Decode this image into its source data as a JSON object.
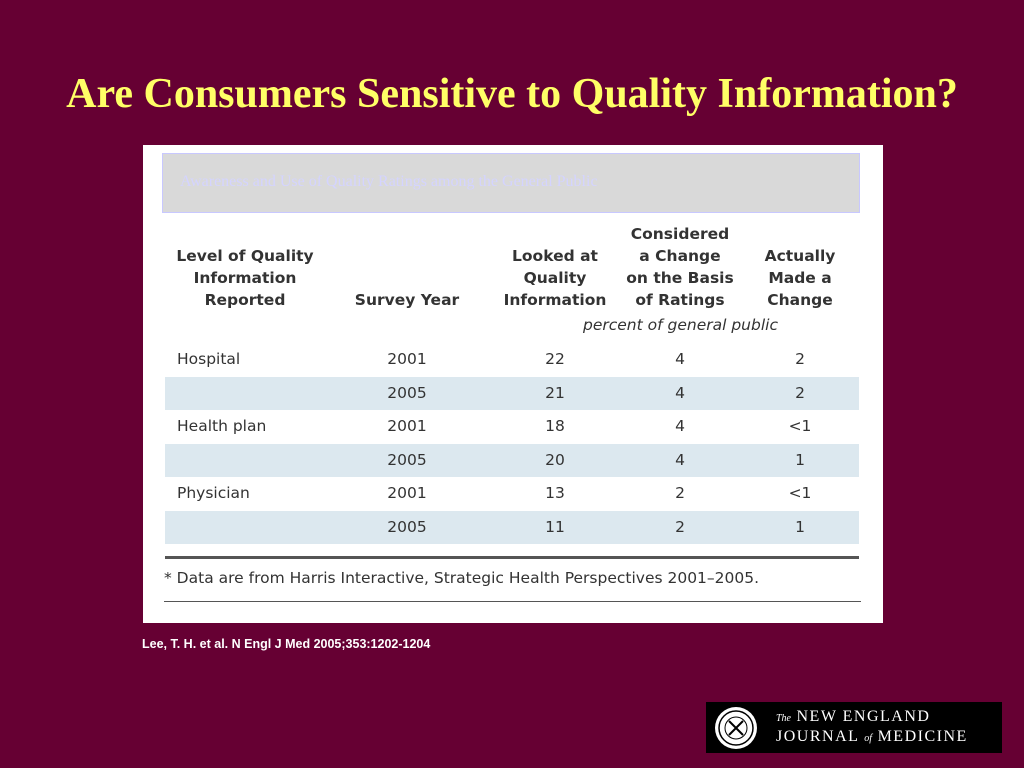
{
  "slide": {
    "title": "Are Consumers Sensitive to Quality Information?",
    "citation": "Lee, T. H. et al. N Engl J Med 2005;353:1202-1204"
  },
  "figure": {
    "caption": "Awareness and Use of Quality Ratings among the General Public",
    "columns": {
      "level": "Level of Quality\nInformation\nReported",
      "year": "Survey Year",
      "looked": "Looked at\nQuality\nInformation",
      "considered": "Considered\na Change\non the Basis\nof Ratings",
      "changed": "Actually\nMade a\nChange"
    },
    "unit_note": "percent of general public",
    "rows": [
      {
        "level": "Hospital",
        "year": "2001",
        "looked": "22",
        "considered": "4",
        "changed": "2"
      },
      {
        "level": "",
        "year": "2005",
        "looked": "21",
        "considered": "4",
        "changed": "2"
      },
      {
        "level": "Health plan",
        "year": "2001",
        "looked": "18",
        "considered": "4",
        "changed": "<1"
      },
      {
        "level": "",
        "year": "2005",
        "looked": "20",
        "considered": "4",
        "changed": "1"
      },
      {
        "level": "Physician",
        "year": "2001",
        "looked": "13",
        "considered": "2",
        "changed": "<1"
      },
      {
        "level": "",
        "year": "2005",
        "looked": "11",
        "considered": "2",
        "changed": "1"
      }
    ],
    "footnote": "* Data are from Harris Interactive, Strategic Health Perspectives 2001–2005."
  },
  "logo": {
    "the": "The",
    "line1": "NEW ENGLAND",
    "line2_a": "JOURNAL",
    "line2_of": "of",
    "line2_b": "MEDICINE"
  },
  "colors": {
    "background": "#660033",
    "title": "#ffff66",
    "row_shade": "#dce8ef"
  }
}
